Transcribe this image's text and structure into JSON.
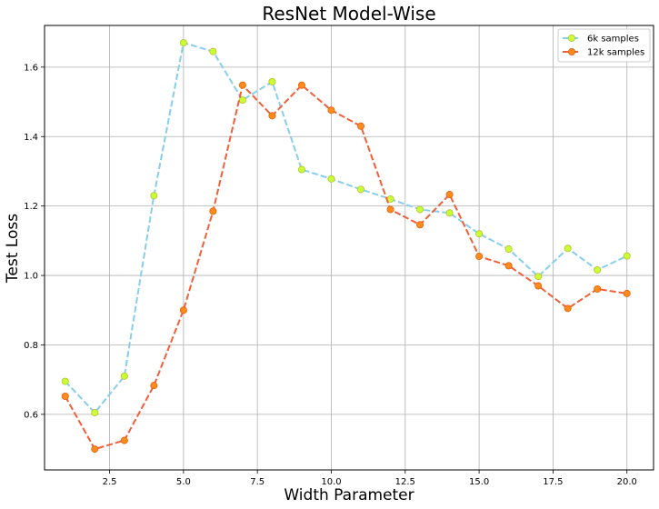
{
  "chart_data": {
    "type": "line",
    "title": "ResNet Model-Wise",
    "xlabel": "Width Parameter",
    "ylabel": "Test Loss",
    "xlim": [
      0.3,
      20.9
    ],
    "ylim": [
      0.44,
      1.72
    ],
    "xticks": [
      2.5,
      5.0,
      7.5,
      10.0,
      12.5,
      15.0,
      17.5,
      20.0
    ],
    "xtick_labels": [
      "2.5",
      "5.0",
      "7.5",
      "10.0",
      "12.5",
      "15.0",
      "17.5",
      "20.0"
    ],
    "yticks": [
      0.6,
      0.8,
      1.0,
      1.2,
      1.4,
      1.6
    ],
    "ytick_labels": [
      "0.6",
      "0.8",
      "1.0",
      "1.2",
      "1.4",
      "1.6"
    ],
    "grid": true,
    "legend_position": "top-right",
    "x": [
      1,
      2,
      3,
      4,
      5,
      6,
      7,
      8,
      9,
      10,
      11,
      12,
      13,
      14,
      15,
      16,
      17,
      18,
      19,
      20
    ],
    "series": [
      {
        "name": "6k samples",
        "line_color": "#87ceeb",
        "marker_color": "#ccff33",
        "marker_edge": "#b0c030",
        "values": [
          0.695,
          0.605,
          0.71,
          1.23,
          1.67,
          1.645,
          1.505,
          1.558,
          1.305,
          1.278,
          1.248,
          1.22,
          1.19,
          1.18,
          1.12,
          1.076,
          0.997,
          1.078,
          1.016,
          1.056
        ]
      },
      {
        "name": "12k samples",
        "line_color": "#f25f3a",
        "marker_color": "#ff8c1a",
        "marker_edge": "#e06010",
        "values": [
          0.652,
          0.5,
          0.525,
          0.683,
          0.9,
          1.185,
          1.548,
          1.46,
          1.548,
          1.476,
          1.43,
          1.19,
          1.146,
          1.233,
          1.055,
          1.028,
          0.97,
          0.905,
          0.961,
          0.948
        ]
      }
    ]
  }
}
